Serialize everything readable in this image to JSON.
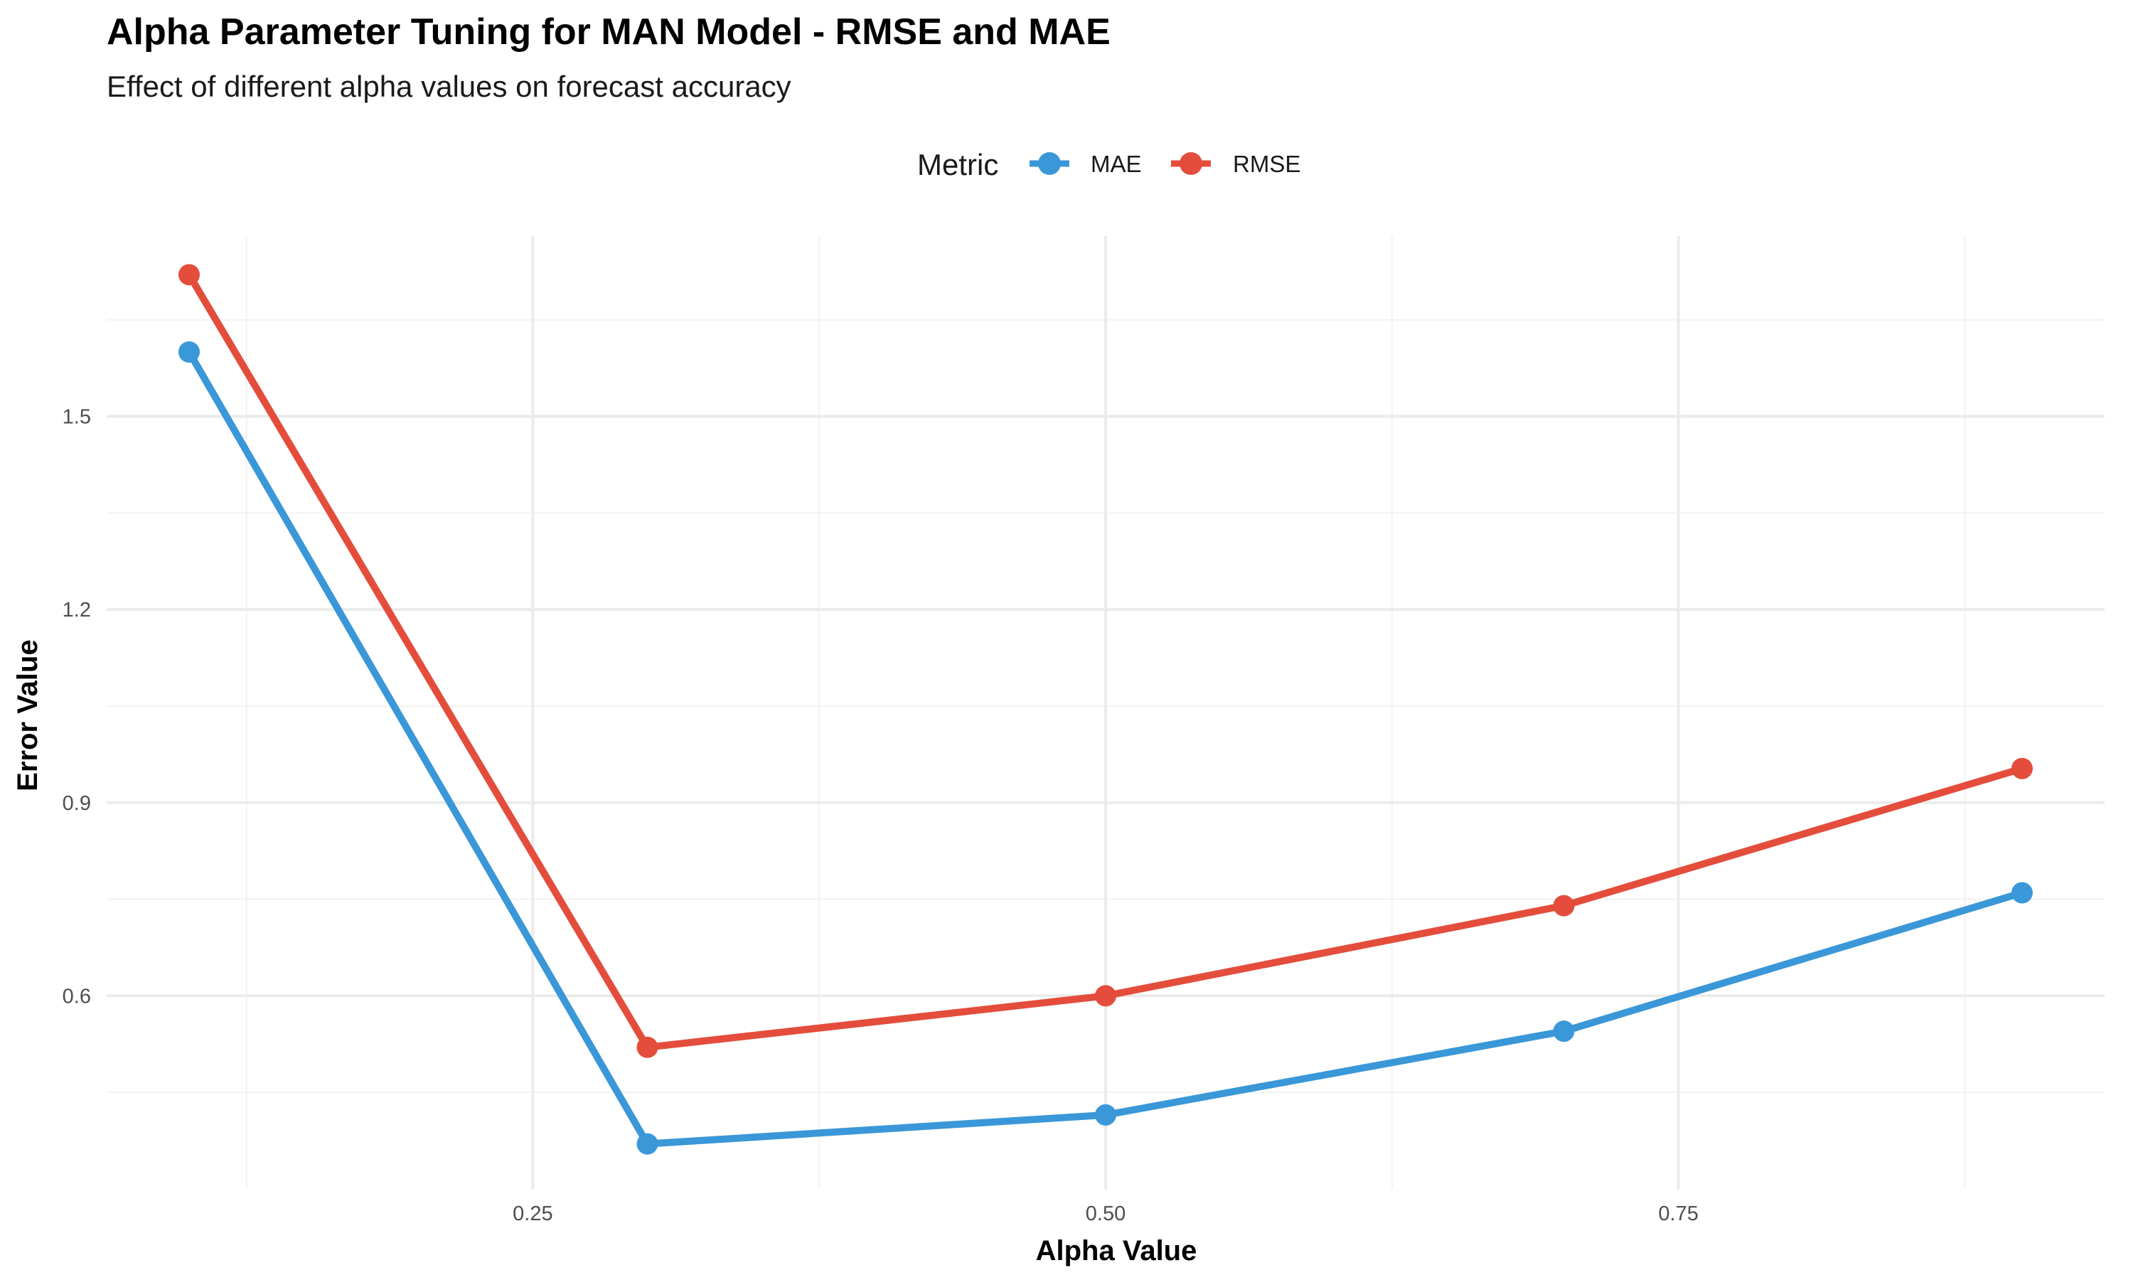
{
  "chart_data": {
    "type": "line",
    "title": "Alpha Parameter Tuning for MAN Model - RMSE and MAE",
    "subtitle": "Effect of different alpha values on forecast accuracy",
    "xlabel": "Alpha Value",
    "ylabel": "Error Value",
    "legend_title": "Metric",
    "legend_position": "top",
    "grid": true,
    "x": [
      0.1,
      0.3,
      0.5,
      0.7,
      0.9
    ],
    "xlim": [
      0.064,
      0.936
    ],
    "ylim": [
      0.3,
      1.78
    ],
    "x_ticks": [
      0.25,
      0.5,
      0.75
    ],
    "x_tick_labels": [
      "0.25",
      "0.50",
      "0.75"
    ],
    "x_minor_ticks": [
      0.125,
      0.375,
      0.625,
      0.875
    ],
    "y_ticks": [
      0.6,
      0.9,
      1.2,
      1.5
    ],
    "y_tick_labels": [
      "0.6",
      "0.9",
      "1.2",
      "1.5"
    ],
    "y_minor_ticks": [
      0.45,
      0.75,
      1.05,
      1.35,
      1.65
    ],
    "series": [
      {
        "name": "MAE",
        "color": "#3a97d8",
        "values": [
          1.6,
          0.37,
          0.415,
          0.545,
          0.76
        ]
      },
      {
        "name": "RMSE",
        "color": "#e44d3b",
        "values": [
          1.72,
          0.52,
          0.6,
          0.74,
          0.953
        ]
      }
    ]
  }
}
